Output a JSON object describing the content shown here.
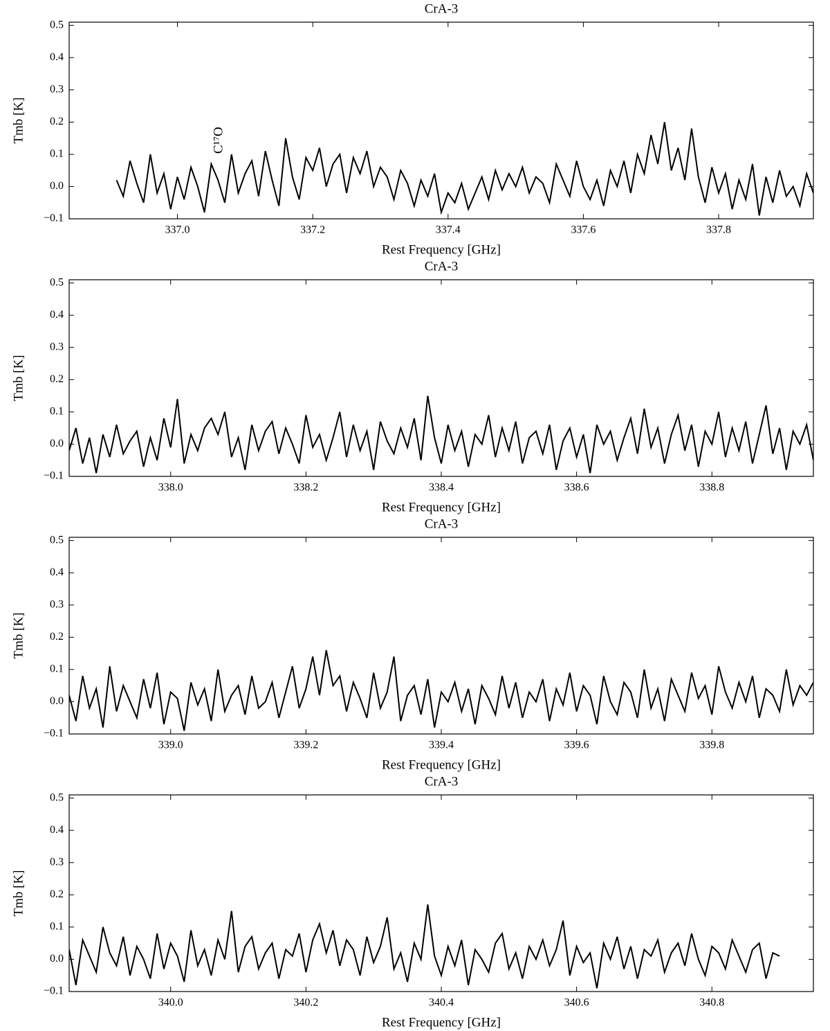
{
  "chart_data": [
    {
      "type": "line",
      "title": "CrA-3",
      "xlabel": "Rest Frequency [GHz]",
      "ylabel": "Tmb [K]",
      "color": "#000000",
      "xlim": [
        336.84,
        337.94
      ],
      "ylim": [
        -0.1,
        0.51
      ],
      "xticks": [
        {
          "value": 337,
          "label": "337.0"
        },
        337.2,
        337.4,
        337.6,
        337.8
      ],
      "yticks": [
        {
          "value": -0.1,
          "label": "−0.1"
        },
        {
          "value": 0,
          "label": "0.0"
        },
        0.1,
        0.2,
        0.3,
        0.4,
        0.5
      ],
      "annotations": [
        {
          "text": "C¹⁷O",
          "x": 337.06
        }
      ],
      "x": [
        336.91,
        336.92,
        336.93,
        336.94,
        336.95,
        336.96,
        336.97,
        336.98,
        336.99,
        337.0,
        337.01,
        337.02,
        337.03,
        337.04,
        337.05,
        337.06,
        337.07,
        337.08,
        337.09,
        337.1,
        337.11,
        337.12,
        337.13,
        337.14,
        337.15,
        337.16,
        337.17,
        337.18,
        337.19,
        337.2,
        337.21,
        337.22,
        337.23,
        337.24,
        337.25,
        337.26,
        337.27,
        337.28,
        337.29,
        337.3,
        337.31,
        337.32,
        337.33,
        337.34,
        337.35,
        337.36,
        337.37,
        337.38,
        337.39,
        337.4,
        337.41,
        337.42,
        337.43,
        337.44,
        337.45,
        337.46,
        337.47,
        337.48,
        337.49,
        337.5,
        337.51,
        337.52,
        337.53,
        337.54,
        337.55,
        337.56,
        337.57,
        337.58,
        337.59,
        337.6,
        337.61,
        337.62,
        337.63,
        337.64,
        337.65,
        337.66,
        337.67,
        337.68,
        337.69,
        337.7,
        337.71,
        337.72,
        337.73,
        337.74,
        337.75,
        337.76,
        337.77,
        337.78,
        337.79,
        337.8,
        337.81,
        337.82,
        337.83,
        337.84,
        337.85,
        337.86,
        337.87,
        337.88,
        337.89,
        337.9,
        337.91,
        337.92,
        337.93,
        337.94
      ],
      "values": [
        0.02,
        -0.03,
        0.08,
        0.01,
        -0.05,
        0.1,
        -0.02,
        0.04,
        -0.07,
        0.03,
        -0.04,
        0.06,
        0.0,
        -0.08,
        0.07,
        0.02,
        -0.05,
        0.1,
        -0.02,
        0.04,
        0.08,
        -0.03,
        0.11,
        0.02,
        -0.06,
        0.15,
        0.03,
        -0.04,
        0.09,
        0.05,
        0.12,
        0.0,
        0.07,
        0.1,
        -0.02,
        0.09,
        0.04,
        0.11,
        0.0,
        0.06,
        0.03,
        -0.04,
        0.05,
        0.01,
        -0.06,
        0.02,
        -0.03,
        0.04,
        -0.08,
        -0.02,
        -0.05,
        0.01,
        -0.07,
        -0.02,
        0.03,
        -0.04,
        0.05,
        -0.01,
        0.04,
        0.0,
        0.06,
        -0.02,
        0.03,
        0.01,
        -0.05,
        0.07,
        0.02,
        -0.03,
        0.08,
        0.0,
        -0.04,
        0.02,
        -0.06,
        0.05,
        0.0,
        0.08,
        -0.02,
        0.1,
        0.04,
        0.16,
        0.07,
        0.2,
        0.05,
        0.12,
        0.02,
        0.18,
        0.03,
        -0.05,
        0.06,
        -0.02,
        0.04,
        -0.07,
        0.02,
        -0.04,
        0.07,
        -0.09,
        0.03,
        -0.05,
        0.05,
        -0.03,
        0.0,
        -0.06,
        0.04,
        -0.02
      ]
    },
    {
      "type": "line",
      "title": "CrA-3",
      "xlabel": "Rest Frequency [GHz]",
      "ylabel": "Tmb [K]",
      "color": "#000000",
      "xlim": [
        337.85,
        338.95
      ],
      "ylim": [
        -0.1,
        0.51
      ],
      "xticks": [
        {
          "value": 338,
          "label": "338.0"
        },
        338.2,
        338.4,
        338.6,
        338.8
      ],
      "yticks": [
        {
          "value": -0.1,
          "label": "−0.1"
        },
        {
          "value": 0,
          "label": "0.0"
        },
        0.1,
        0.2,
        0.3,
        0.4,
        0.5
      ],
      "x": [
        337.85,
        337.86,
        337.87,
        337.88,
        337.89,
        337.9,
        337.91,
        337.92,
        337.93,
        337.94,
        337.95,
        337.96,
        337.97,
        337.98,
        337.99,
        338.0,
        338.01,
        338.02,
        338.03,
        338.04,
        338.05,
        338.06,
        338.07,
        338.08,
        338.09,
        338.1,
        338.11,
        338.12,
        338.13,
        338.14,
        338.15,
        338.16,
        338.17,
        338.18,
        338.19,
        338.2,
        338.21,
        338.22,
        338.23,
        338.24,
        338.25,
        338.26,
        338.27,
        338.28,
        338.29,
        338.3,
        338.31,
        338.32,
        338.33,
        338.34,
        338.35,
        338.36,
        338.37,
        338.38,
        338.39,
        338.4,
        338.41,
        338.42,
        338.43,
        338.44,
        338.45,
        338.46,
        338.47,
        338.48,
        338.49,
        338.5,
        338.51,
        338.52,
        338.53,
        338.54,
        338.55,
        338.56,
        338.57,
        338.58,
        338.59,
        338.6,
        338.61,
        338.62,
        338.63,
        338.64,
        338.65,
        338.66,
        338.67,
        338.68,
        338.69,
        338.7,
        338.71,
        338.72,
        338.73,
        338.74,
        338.75,
        338.76,
        338.77,
        338.78,
        338.79,
        338.8,
        338.81,
        338.82,
        338.83,
        338.84,
        338.85,
        338.86,
        338.87,
        338.88,
        338.89,
        338.9,
        338.91,
        338.92,
        338.93,
        338.94,
        338.95
      ],
      "values": [
        -0.02,
        0.05,
        -0.06,
        0.02,
        -0.09,
        0.03,
        -0.04,
        0.06,
        -0.03,
        0.01,
        0.04,
        -0.07,
        0.02,
        -0.05,
        0.08,
        -0.01,
        0.14,
        -0.06,
        0.03,
        -0.02,
        0.05,
        0.08,
        0.03,
        0.1,
        -0.04,
        0.02,
        -0.08,
        0.06,
        -0.02,
        0.04,
        0.07,
        -0.03,
        0.05,
        0.0,
        -0.06,
        0.09,
        -0.01,
        0.03,
        -0.05,
        0.02,
        0.1,
        -0.04,
        0.06,
        -0.02,
        0.04,
        -0.08,
        0.07,
        0.01,
        -0.03,
        0.05,
        -0.01,
        0.08,
        -0.05,
        0.15,
        0.02,
        -0.06,
        0.06,
        -0.02,
        0.04,
        -0.07,
        0.03,
        0.0,
        0.09,
        -0.04,
        0.05,
        -0.02,
        0.07,
        -0.06,
        0.02,
        0.04,
        -0.03,
        0.06,
        -0.08,
        0.01,
        0.05,
        -0.04,
        0.03,
        -0.09,
        0.06,
        0.0,
        0.04,
        -0.05,
        0.02,
        0.08,
        -0.03,
        0.11,
        -0.01,
        0.05,
        -0.06,
        0.03,
        0.09,
        -0.02,
        0.06,
        -0.07,
        0.04,
        0.0,
        0.1,
        -0.04,
        0.05,
        -0.02,
        0.07,
        -0.06,
        0.03,
        0.12,
        -0.03,
        0.05,
        -0.08,
        0.04,
        0.0,
        0.06,
        -0.05
      ]
    },
    {
      "type": "line",
      "title": "CrA-3",
      "xlabel": "Rest Frequency [GHz]",
      "ylabel": "Tmb [K]",
      "color": "#000000",
      "xlim": [
        338.85,
        339.95
      ],
      "ylim": [
        -0.1,
        0.51
      ],
      "xticks": [
        {
          "value": 339,
          "label": "339.0"
        },
        339.2,
        339.4,
        339.6,
        339.8
      ],
      "yticks": [
        {
          "value": -0.1,
          "label": "−0.1"
        },
        {
          "value": 0,
          "label": "0.0"
        },
        0.1,
        0.2,
        0.3,
        0.4,
        0.5
      ],
      "x": [
        338.85,
        338.86,
        338.87,
        338.88,
        338.89,
        338.9,
        338.91,
        338.92,
        338.93,
        338.94,
        338.95,
        338.96,
        338.97,
        338.98,
        338.99,
        339.0,
        339.01,
        339.02,
        339.03,
        339.04,
        339.05,
        339.06,
        339.07,
        339.08,
        339.09,
        339.1,
        339.11,
        339.12,
        339.13,
        339.14,
        339.15,
        339.16,
        339.17,
        339.18,
        339.19,
        339.2,
        339.21,
        339.22,
        339.23,
        339.24,
        339.25,
        339.26,
        339.27,
        339.28,
        339.29,
        339.3,
        339.31,
        339.32,
        339.33,
        339.34,
        339.35,
        339.36,
        339.37,
        339.38,
        339.39,
        339.4,
        339.41,
        339.42,
        339.43,
        339.44,
        339.45,
        339.46,
        339.47,
        339.48,
        339.49,
        339.5,
        339.51,
        339.52,
        339.53,
        339.54,
        339.55,
        339.56,
        339.57,
        339.58,
        339.59,
        339.6,
        339.61,
        339.62,
        339.63,
        339.64,
        339.65,
        339.66,
        339.67,
        339.68,
        339.69,
        339.7,
        339.71,
        339.72,
        339.73,
        339.74,
        339.75,
        339.76,
        339.77,
        339.78,
        339.79,
        339.8,
        339.81,
        339.82,
        339.83,
        339.84,
        339.85,
        339.86,
        339.87,
        339.88,
        339.89,
        339.9,
        339.91,
        339.92,
        339.93,
        339.94,
        339.95
      ],
      "values": [
        0.02,
        -0.06,
        0.08,
        -0.02,
        0.04,
        -0.08,
        0.11,
        -0.03,
        0.05,
        0.0,
        -0.05,
        0.07,
        -0.02,
        0.09,
        -0.07,
        0.03,
        0.01,
        -0.09,
        0.06,
        -0.01,
        0.04,
        -0.06,
        0.1,
        -0.03,
        0.02,
        0.05,
        -0.04,
        0.08,
        -0.02,
        0.0,
        0.06,
        -0.05,
        0.03,
        0.11,
        -0.02,
        0.04,
        0.14,
        0.02,
        0.16,
        0.05,
        0.08,
        -0.03,
        0.06,
        0.01,
        -0.05,
        0.09,
        -0.02,
        0.03,
        0.14,
        -0.06,
        0.02,
        0.05,
        -0.04,
        0.07,
        -0.08,
        0.03,
        0.0,
        0.06,
        -0.03,
        0.04,
        -0.07,
        0.05,
        0.01,
        -0.04,
        0.08,
        -0.02,
        0.06,
        -0.05,
        0.03,
        0.0,
        0.07,
        -0.06,
        0.04,
        -0.01,
        0.09,
        -0.03,
        0.05,
        0.02,
        -0.07,
        0.08,
        0.0,
        -0.04,
        0.06,
        0.03,
        -0.05,
        0.1,
        -0.02,
        0.04,
        -0.06,
        0.07,
        0.02,
        -0.03,
        0.09,
        0.01,
        0.05,
        -0.04,
        0.11,
        0.03,
        -0.02,
        0.06,
        0.0,
        0.08,
        -0.05,
        0.04,
        0.02,
        -0.03,
        0.1,
        -0.01,
        0.05,
        0.02,
        0.06
      ]
    },
    {
      "type": "line",
      "title": "CrA-3",
      "xlabel": "Rest Frequency [GHz]",
      "ylabel": "Tmb [K]",
      "color": "#000000",
      "xlim": [
        339.85,
        340.95
      ],
      "ylim": [
        -0.1,
        0.51
      ],
      "xticks": [
        {
          "value": 340,
          "label": "340.0"
        },
        340.2,
        340.4,
        340.6,
        340.8
      ],
      "yticks": [
        {
          "value": -0.1,
          "label": "−0.1"
        },
        {
          "value": 0,
          "label": "0.0"
        },
        0.1,
        0.2,
        0.3,
        0.4,
        0.5
      ],
      "x": [
        339.85,
        339.86,
        339.87,
        339.88,
        339.89,
        339.9,
        339.91,
        339.92,
        339.93,
        339.94,
        339.95,
        339.96,
        339.97,
        339.98,
        339.99,
        340.0,
        340.01,
        340.02,
        340.03,
        340.04,
        340.05,
        340.06,
        340.07,
        340.08,
        340.09,
        340.1,
        340.11,
        340.12,
        340.13,
        340.14,
        340.15,
        340.16,
        340.17,
        340.18,
        340.19,
        340.2,
        340.21,
        340.22,
        340.23,
        340.24,
        340.25,
        340.26,
        340.27,
        340.28,
        340.29,
        340.3,
        340.31,
        340.32,
        340.33,
        340.34,
        340.35,
        340.36,
        340.37,
        340.38,
        340.39,
        340.4,
        340.41,
        340.42,
        340.43,
        340.44,
        340.45,
        340.46,
        340.47,
        340.48,
        340.49,
        340.5,
        340.51,
        340.52,
        340.53,
        340.54,
        340.55,
        340.56,
        340.57,
        340.58,
        340.59,
        340.6,
        340.61,
        340.62,
        340.63,
        340.64,
        340.65,
        340.66,
        340.67,
        340.68,
        340.69,
        340.7,
        340.71,
        340.72,
        340.73,
        340.74,
        340.75,
        340.76,
        340.77,
        340.78,
        340.79,
        340.8,
        340.81,
        340.82,
        340.83,
        340.84,
        340.85,
        340.86,
        340.87,
        340.88,
        340.89,
        340.9
      ],
      "values": [
        0.03,
        -0.08,
        0.06,
        0.01,
        -0.04,
        0.1,
        0.02,
        -0.02,
        0.07,
        -0.05,
        0.04,
        0.0,
        -0.06,
        0.08,
        -0.03,
        0.05,
        0.01,
        -0.07,
        0.09,
        -0.02,
        0.03,
        -0.05,
        0.06,
        0.0,
        0.15,
        -0.04,
        0.04,
        0.07,
        -0.03,
        0.02,
        0.05,
        -0.06,
        0.03,
        0.01,
        0.08,
        -0.04,
        0.06,
        0.11,
        0.02,
        0.09,
        -0.02,
        0.06,
        0.03,
        -0.05,
        0.07,
        -0.01,
        0.04,
        0.13,
        -0.03,
        0.02,
        -0.07,
        0.05,
        0.0,
        0.17,
        0.01,
        -0.05,
        0.04,
        -0.02,
        0.06,
        -0.08,
        0.03,
        0.0,
        -0.04,
        0.05,
        0.08,
        -0.03,
        0.02,
        -0.06,
        0.04,
        0.0,
        0.06,
        -0.02,
        0.03,
        0.12,
        -0.05,
        0.04,
        -0.01,
        0.02,
        -0.09,
        0.05,
        0.0,
        0.07,
        -0.03,
        0.04,
        -0.06,
        0.03,
        0.01,
        0.06,
        -0.04,
        0.02,
        0.05,
        -0.02,
        0.08,
        0.0,
        -0.05,
        0.04,
        0.02,
        -0.03,
        0.06,
        0.01,
        -0.04,
        0.03,
        0.05,
        -0.06,
        0.02,
        0.01
      ]
    }
  ]
}
